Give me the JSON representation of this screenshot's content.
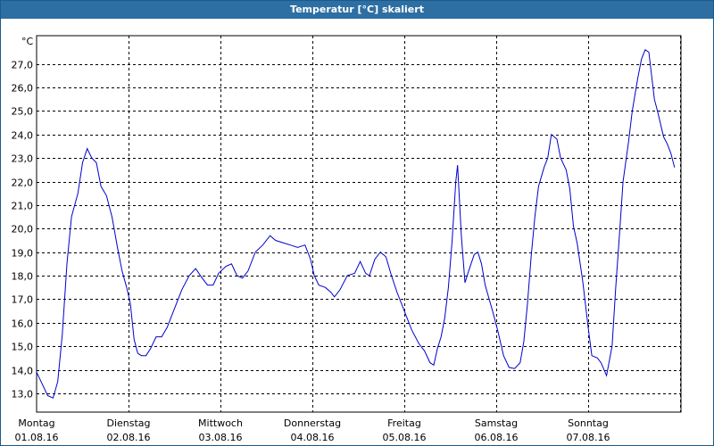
{
  "window": {
    "title": "Temperatur [°C] skaliert"
  },
  "chart_data": {
    "type": "line",
    "title": "Temperatur [°C] skaliert",
    "ylabel": "°C",
    "xlabel": "",
    "ylim": [
      12.2,
      28.2
    ],
    "xlim": [
      0,
      7
    ],
    "grid": true,
    "y_ticks": [
      "13,0",
      "14,0",
      "15,0",
      "16,0",
      "17,0",
      "18,0",
      "19,0",
      "20,0",
      "21,0",
      "22,0",
      "23,0",
      "24,0",
      "25,0",
      "26,0",
      "27,0"
    ],
    "x_ticks": [
      {
        "day": "Montag",
        "date": "01.08.16"
      },
      {
        "day": "Dienstag",
        "date": "02.08.16"
      },
      {
        "day": "Mittwoch",
        "date": "03.08.16"
      },
      {
        "day": "Donnerstag",
        "date": "04.08.16"
      },
      {
        "day": "Freitag",
        "date": "05.08.16"
      },
      {
        "day": "Samstag",
        "date": "06.08.16"
      },
      {
        "day": "Sonntag",
        "date": "07.08.16"
      }
    ],
    "series": [
      {
        "name": "",
        "color": "#0000cc",
        "points": [
          [
            0.0,
            13.9
          ],
          [
            0.06,
            13.4
          ],
          [
            0.12,
            12.9
          ],
          [
            0.18,
            12.8
          ],
          [
            0.23,
            13.5
          ],
          [
            0.28,
            15.5
          ],
          [
            0.33,
            18.5
          ],
          [
            0.38,
            20.5
          ],
          [
            0.45,
            21.5
          ],
          [
            0.5,
            22.8
          ],
          [
            0.55,
            23.4
          ],
          [
            0.6,
            23.0
          ],
          [
            0.65,
            22.8
          ],
          [
            0.7,
            21.8
          ],
          [
            0.76,
            21.4
          ],
          [
            0.82,
            20.5
          ],
          [
            0.88,
            19.2
          ],
          [
            0.93,
            18.2
          ],
          [
            0.98,
            17.5
          ],
          [
            1.02,
            16.8
          ],
          [
            1.06,
            15.3
          ],
          [
            1.1,
            14.7
          ],
          [
            1.14,
            14.6
          ],
          [
            1.19,
            14.6
          ],
          [
            1.24,
            14.9
          ],
          [
            1.3,
            15.4
          ],
          [
            1.36,
            15.4
          ],
          [
            1.42,
            15.8
          ],
          [
            1.5,
            16.6
          ],
          [
            1.58,
            17.4
          ],
          [
            1.66,
            18.0
          ],
          [
            1.73,
            18.3
          ],
          [
            1.8,
            17.9
          ],
          [
            1.86,
            17.6
          ],
          [
            1.92,
            17.6
          ],
          [
            1.98,
            18.1
          ],
          [
            2.06,
            18.4
          ],
          [
            2.12,
            18.5
          ],
          [
            2.18,
            18.0
          ],
          [
            2.24,
            17.9
          ],
          [
            2.3,
            18.2
          ],
          [
            2.38,
            19.0
          ],
          [
            2.46,
            19.3
          ],
          [
            2.54,
            19.7
          ],
          [
            2.6,
            19.5
          ],
          [
            2.68,
            19.4
          ],
          [
            2.76,
            19.3
          ],
          [
            2.84,
            19.2
          ],
          [
            2.92,
            19.3
          ],
          [
            2.98,
            18.7
          ],
          [
            3.02,
            18.0
          ],
          [
            3.07,
            17.6
          ],
          [
            3.14,
            17.5
          ],
          [
            3.2,
            17.3
          ],
          [
            3.24,
            17.1
          ],
          [
            3.3,
            17.4
          ],
          [
            3.38,
            18.0
          ],
          [
            3.46,
            18.1
          ],
          [
            3.52,
            18.6
          ],
          [
            3.58,
            18.1
          ],
          [
            3.62,
            18.0
          ],
          [
            3.68,
            18.7
          ],
          [
            3.74,
            19.0
          ],
          [
            3.8,
            18.8
          ],
          [
            3.86,
            18.0
          ],
          [
            3.92,
            17.3
          ],
          [
            4.0,
            16.5
          ],
          [
            4.08,
            15.7
          ],
          [
            4.16,
            15.1
          ],
          [
            4.22,
            14.8
          ],
          [
            4.28,
            14.3
          ],
          [
            4.32,
            14.2
          ],
          [
            4.36,
            14.9
          ],
          [
            4.4,
            15.4
          ],
          [
            4.44,
            16.2
          ],
          [
            4.48,
            17.5
          ],
          [
            4.52,
            19.5
          ],
          [
            4.56,
            22.0
          ],
          [
            4.58,
            22.7
          ],
          [
            4.62,
            19.7
          ],
          [
            4.66,
            17.7
          ],
          [
            4.7,
            18.2
          ],
          [
            4.76,
            18.9
          ],
          [
            4.8,
            19.0
          ],
          [
            4.84,
            18.5
          ],
          [
            4.88,
            17.6
          ],
          [
            4.96,
            16.5
          ],
          [
            5.02,
            15.6
          ],
          [
            5.08,
            14.6
          ],
          [
            5.14,
            14.1
          ],
          [
            5.2,
            14.05
          ],
          [
            5.26,
            14.3
          ],
          [
            5.3,
            15.2
          ],
          [
            5.34,
            16.8
          ],
          [
            5.38,
            18.8
          ],
          [
            5.42,
            20.5
          ],
          [
            5.46,
            21.8
          ],
          [
            5.52,
            22.6
          ],
          [
            5.56,
            23.0
          ],
          [
            5.6,
            24.0
          ],
          [
            5.66,
            23.8
          ],
          [
            5.7,
            23.0
          ],
          [
            5.76,
            22.5
          ],
          [
            5.8,
            21.7
          ],
          [
            5.84,
            20.1
          ],
          [
            5.88,
            19.4
          ],
          [
            5.94,
            17.8
          ],
          [
            6.0,
            15.8
          ],
          [
            6.04,
            14.6
          ],
          [
            6.1,
            14.5
          ],
          [
            6.14,
            14.3
          ],
          [
            6.2,
            13.75
          ],
          [
            6.26,
            15.0
          ],
          [
            6.3,
            17.5
          ],
          [
            6.34,
            19.7
          ],
          [
            6.38,
            22.0
          ],
          [
            6.44,
            23.7
          ],
          [
            6.48,
            25.0
          ],
          [
            6.54,
            26.4
          ],
          [
            6.58,
            27.2
          ],
          [
            6.62,
            27.6
          ],
          [
            6.66,
            27.5
          ],
          [
            6.72,
            25.5
          ],
          [
            6.76,
            24.9
          ],
          [
            6.82,
            23.9
          ],
          [
            6.86,
            23.6
          ],
          [
            6.9,
            23.2
          ],
          [
            6.94,
            22.6
          ]
        ]
      }
    ]
  }
}
